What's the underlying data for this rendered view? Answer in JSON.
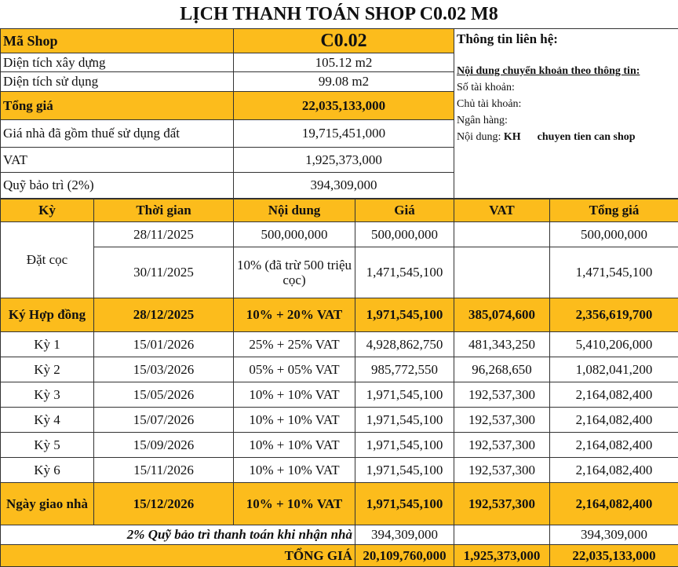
{
  "title": "LỊCH THANH TOÁN SHOP C0.02 M8",
  "summary": [
    {
      "label": "Mã Shop",
      "value": "C0.02"
    },
    {
      "label": "Diện tích xây dựng",
      "value": "105.12 m2"
    },
    {
      "label": "Diện tích sử dụng",
      "value": "99.08 m2"
    },
    {
      "label": "Tổng giá",
      "value": "22,035,133,000"
    },
    {
      "label": "Giá nhà đã gồm thuế sử dụng đất",
      "value": "19,715,451,000"
    },
    {
      "label": "VAT",
      "value": "1,925,373,000"
    },
    {
      "label": "Quỹ bảo trì (2%)",
      "value": "394,309,000"
    }
  ],
  "contact": {
    "heading": "Thông tin liên hệ:",
    "transfer_heading": "Nội dung chuyển khoản theo thông tin:",
    "account_no": "Số tài khoản:",
    "account_holder": "Chủ tài khoản:",
    "bank": "Ngân hàng:",
    "content_label": "Nội dung:",
    "content_value": "KH",
    "content_suffix": "chuyen tien can shop"
  },
  "schedule": {
    "headers": [
      "Kỳ",
      "Thời gian",
      "Nội dung",
      "Giá",
      "VAT",
      "Tổng giá"
    ],
    "deposit_label": "Đặt cọc",
    "deposit_rows": [
      [
        "28/11/2025",
        "500,000,000",
        "500,000,000",
        "",
        "500,000,000"
      ],
      [
        "30/11/2025",
        "10% (đã trừ 500 triệu cọc)",
        "1,471,545,100",
        "",
        "1,471,545,100"
      ]
    ],
    "rows": [
      [
        "Ký Hợp đồng",
        "28/12/2025",
        "10% + 20% VAT",
        "1,971,545,100",
        "385,074,600",
        "2,356,619,700"
      ],
      [
        "Kỳ 1",
        "15/01/2026",
        "25% + 25% VAT",
        "4,928,862,750",
        "481,343,250",
        "5,410,206,000"
      ],
      [
        "Kỳ 2",
        "15/03/2026",
        "05% + 05% VAT",
        "985,772,550",
        "96,268,650",
        "1,082,041,200"
      ],
      [
        "Kỳ 3",
        "15/05/2026",
        "10% + 10% VAT",
        "1,971,545,100",
        "192,537,300",
        "2,164,082,400"
      ],
      [
        "Kỳ 4",
        "15/07/2026",
        "10% + 10% VAT",
        "1,971,545,100",
        "192,537,300",
        "2,164,082,400"
      ],
      [
        "Kỳ 5",
        "15/09/2026",
        "10% + 10% VAT",
        "1,971,545,100",
        "192,537,300",
        "2,164,082,400"
      ],
      [
        "Kỳ 6",
        "15/11/2026",
        "10% + 10% VAT",
        "1,971,545,100",
        "192,537,300",
        "2,164,082,400"
      ],
      [
        "Ngày giao nhà",
        "15/12/2026",
        "10% + 10% VAT",
        "1,971,545,100",
        "192,537,300",
        "2,164,082,400"
      ]
    ],
    "maintenance": {
      "label": "2% Quỹ bảo trì thanh toán khi nhận nhà",
      "price": "394,309,000",
      "vat": "",
      "total": "394,309,000"
    },
    "grand_total": {
      "label": "TỔNG GIÁ",
      "price": "20,109,760,000",
      "vat": "1,925,373,000",
      "total": "22,035,133,000"
    }
  },
  "colors": {
    "highlight": "#fcbc1c"
  }
}
